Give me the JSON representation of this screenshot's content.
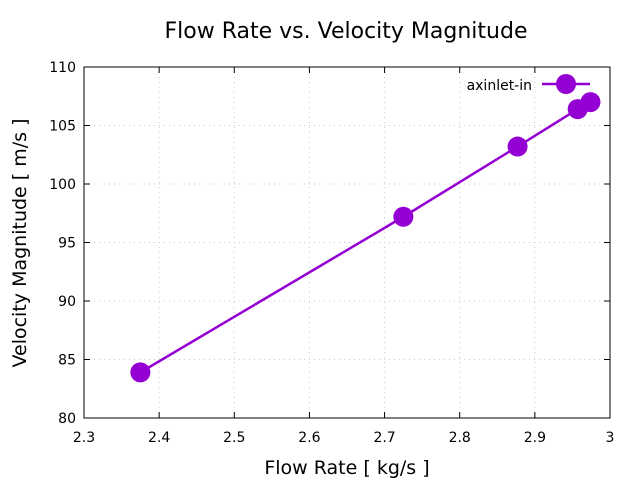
{
  "chart_data": {
    "type": "line",
    "title": "Flow Rate vs. Velocity Magnitude",
    "xlabel": "Flow Rate [ kg/s ]",
    "ylabel": "Velocity Magnitude [ m/s ]",
    "xlim": [
      2.3,
      3.0
    ],
    "ylim": [
      80,
      110
    ],
    "xticks": [
      2.3,
      2.4,
      2.5,
      2.6,
      2.7,
      2.8,
      2.9,
      3.0
    ],
    "xtick_labels": [
      "2.3",
      "2.4",
      "2.5",
      "2.6",
      "2.7",
      "2.8",
      "2.9",
      "3"
    ],
    "yticks": [
      80,
      85,
      90,
      95,
      100,
      105,
      110
    ],
    "ytick_labels": [
      "80",
      "85",
      "90",
      "95",
      "100",
      "105",
      "110"
    ],
    "grid": true,
    "legend_position": "top-right",
    "series": [
      {
        "name": "axinlet-in",
        "color": "#9400d3",
        "marker": "circle",
        "x": [
          2.375,
          2.725,
          2.877,
          2.957,
          2.974
        ],
        "y": [
          83.9,
          97.2,
          103.2,
          106.4,
          107.0
        ]
      }
    ]
  }
}
